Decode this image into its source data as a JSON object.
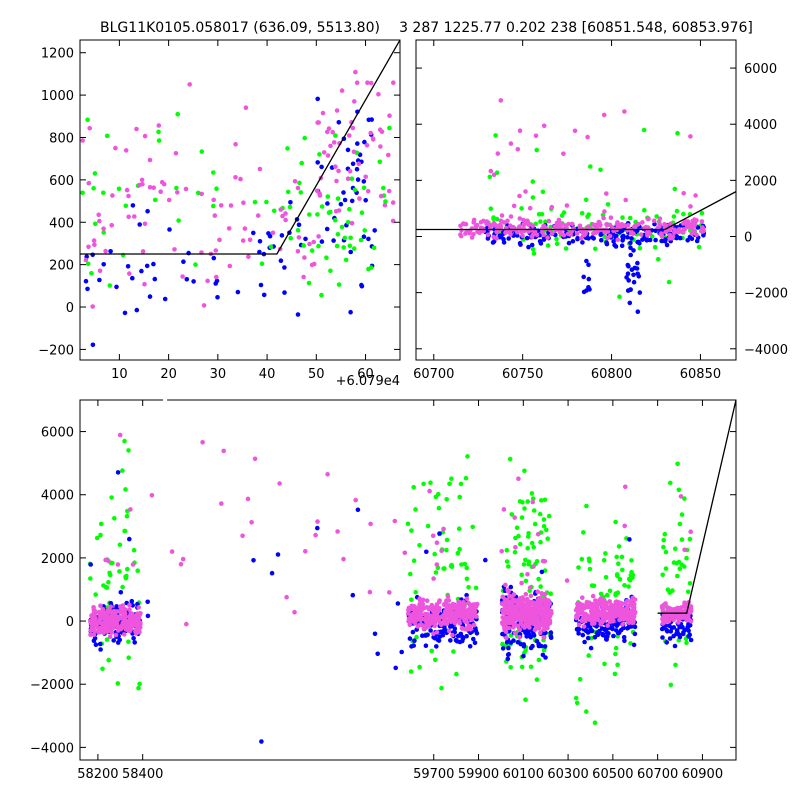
{
  "colors": {
    "green": "#00ff00",
    "blue": "#0000ff",
    "magenta": "#ee55dd",
    "model": "#000000"
  },
  "chart_data": [
    {
      "id": "top-left",
      "type": "scatter",
      "title": "BLG11K0105.058017 (636.09, 5513.80)",
      "offset_label": "+6.079e4",
      "xlim": [
        2,
        67
      ],
      "ylim": [
        -250,
        1260
      ],
      "xticks": [
        10,
        20,
        30,
        40,
        50,
        60
      ],
      "yticks": [
        -200,
        0,
        200,
        400,
        600,
        800,
        1000,
        1200
      ],
      "model": {
        "x": [
          2,
          42,
          67
        ],
        "y": [
          250,
          250,
          1260
        ]
      },
      "series": [
        {
          "name": "blue",
          "color": "blue",
          "seed": 11,
          "gen": [
            {
              "x": [
                2,
                40
              ],
              "y": [
                -220,
                600
              ],
              "n": 35
            },
            {
              "x": [
                38,
                48
              ],
              "y": [
                -100,
                700
              ],
              "n": 18
            },
            {
              "x": [
                50,
                62
              ],
              "y": [
                -150,
                1150
              ],
              "n": 45
            }
          ]
        },
        {
          "name": "green",
          "color": "green",
          "seed": 23,
          "gen": [
            {
              "x": [
                2,
                40
              ],
              "y": [
                -200,
                1200
              ],
              "n": 30
            },
            {
              "x": [
                40,
                50
              ],
              "y": [
                -100,
                1050
              ],
              "n": 16
            },
            {
              "x": [
                50,
                65
              ],
              "y": [
                -120,
                1000
              ],
              "n": 40
            }
          ]
        },
        {
          "name": "magenta",
          "color": "magenta",
          "seed": 37,
          "gen": [
            {
              "x": [
                2,
                42
              ],
              "y": [
                -200,
                1100
              ],
              "n": 70
            },
            {
              "x": [
                42,
                50
              ],
              "y": [
                0,
                700
              ],
              "n": 15
            },
            {
              "x": [
                50,
                66
              ],
              "y": [
                200,
                1230
              ],
              "n": 55
            }
          ]
        }
      ]
    },
    {
      "id": "top-right",
      "type": "scatter",
      "title": "3 287 1225.77 0.202 238 [60851.548, 60853.976]",
      "xlim": [
        60690,
        60870
      ],
      "ylim": [
        -4400,
        7000
      ],
      "xticks": [
        60700,
        60750,
        60800,
        60850
      ],
      "yticks": [
        -4000,
        -2000,
        0,
        2000,
        4000,
        6000
      ],
      "model": {
        "x": [
          60690,
          60830,
          60870
        ],
        "y": [
          250,
          250,
          1600
        ]
      },
      "series": [
        {
          "name": "green",
          "color": "green",
          "seed": 41,
          "gen": [
            {
              "x": [
                60728,
                60852
              ],
              "y": [
                -800,
                1500
              ],
              "n": 90
            },
            {
              "x": [
                60728,
                60852
              ],
              "y": [
                -4200,
                6900
              ],
              "n": 22
            }
          ]
        },
        {
          "name": "blue",
          "color": "blue",
          "seed": 53,
          "gen": [
            {
              "x": [
                60728,
                60852
              ],
              "y": [
                -500,
                700
              ],
              "n": 180
            },
            {
              "x": [
                60808,
                60816
              ],
              "y": [
                -3800,
                1000
              ],
              "n": 25
            },
            {
              "x": [
                60784,
                60788
              ],
              "y": [
                -2800,
                -500
              ],
              "n": 8
            }
          ]
        },
        {
          "name": "magenta",
          "color": "magenta",
          "seed": 67,
          "gen": [
            {
              "x": [
                60715,
                60852
              ],
              "y": [
                -200,
                800
              ],
              "n": 260
            },
            {
              "x": [
                60730,
                60852
              ],
              "y": [
                -1500,
                6500
              ],
              "n": 30
            }
          ]
        }
      ]
    },
    {
      "id": "bottom",
      "type": "scatter",
      "xlim": [
        58120,
        61050
      ],
      "ylim": [
        -4400,
        7000
      ],
      "xticks": [
        58200,
        58400,
        59700,
        59900,
        60100,
        60300,
        60500,
        60700,
        60900
      ],
      "yticks": [
        -4000,
        -2000,
        0,
        2000,
        4000,
        6000
      ],
      "gap_x": 58500,
      "model": {
        "x": [
          60700,
          60830,
          61050
        ],
        "y": [
          250,
          250,
          7000
        ]
      },
      "series": [
        {
          "name": "green",
          "color": "green",
          "seed": 71,
          "gen": [
            {
              "x": [
                58165,
                58390
              ],
              "y": [
                -3800,
                6400
              ],
              "n": 60
            },
            {
              "x": [
                59585,
                59895
              ],
              "y": [
                -3200,
                6200
              ],
              "n": 70
            },
            {
              "x": [
                60005,
                60225
              ],
              "y": [
                -4200,
                6900
              ],
              "n": 90
            },
            {
              "x": [
                60335,
                60600
              ],
              "y": [
                -4200,
                5000
              ],
              "n": 70
            },
            {
              "x": [
                60720,
                60850
              ],
              "y": [
                -3000,
                6900
              ],
              "n": 40
            }
          ]
        },
        {
          "name": "blue",
          "color": "blue",
          "seed": 83,
          "gen": [
            {
              "x": [
                58165,
                58390
              ],
              "y": [
                -1000,
                1000
              ],
              "n": 120
            },
            {
              "x": [
                59585,
                59895
              ],
              "y": [
                -1200,
                1000
              ],
              "n": 130
            },
            {
              "x": [
                60005,
                60225
              ],
              "y": [
                -1500,
                1500
              ],
              "n": 160
            },
            {
              "x": [
                60335,
                60600
              ],
              "y": [
                -1000,
                900
              ],
              "n": 140
            },
            {
              "x": [
                60720,
                60850
              ],
              "y": [
                -900,
                700
              ],
              "n": 60
            },
            {
              "x": [
                58165,
                60850
              ],
              "y": [
                -4300,
                6100
              ],
              "n": 30
            }
          ]
        },
        {
          "name": "magenta",
          "color": "magenta",
          "seed": 97,
          "gen": [
            {
              "x": [
                58165,
                58390
              ],
              "y": [
                -600,
                600
              ],
              "n": 260
            },
            {
              "x": [
                59585,
                59895
              ],
              "y": [
                -500,
                900
              ],
              "n": 280
            },
            {
              "x": [
                60005,
                60225
              ],
              "y": [
                -600,
                1200
              ],
              "n": 320
            },
            {
              "x": [
                60335,
                60600
              ],
              "y": [
                -300,
                900
              ],
              "n": 280
            },
            {
              "x": [
                60720,
                60850
              ],
              "y": [
                -200,
                700
              ],
              "n": 140
            },
            {
              "x": [
                58165,
                60850
              ],
              "y": [
                -1500,
                6500
              ],
              "n": 60
            }
          ]
        }
      ]
    }
  ]
}
